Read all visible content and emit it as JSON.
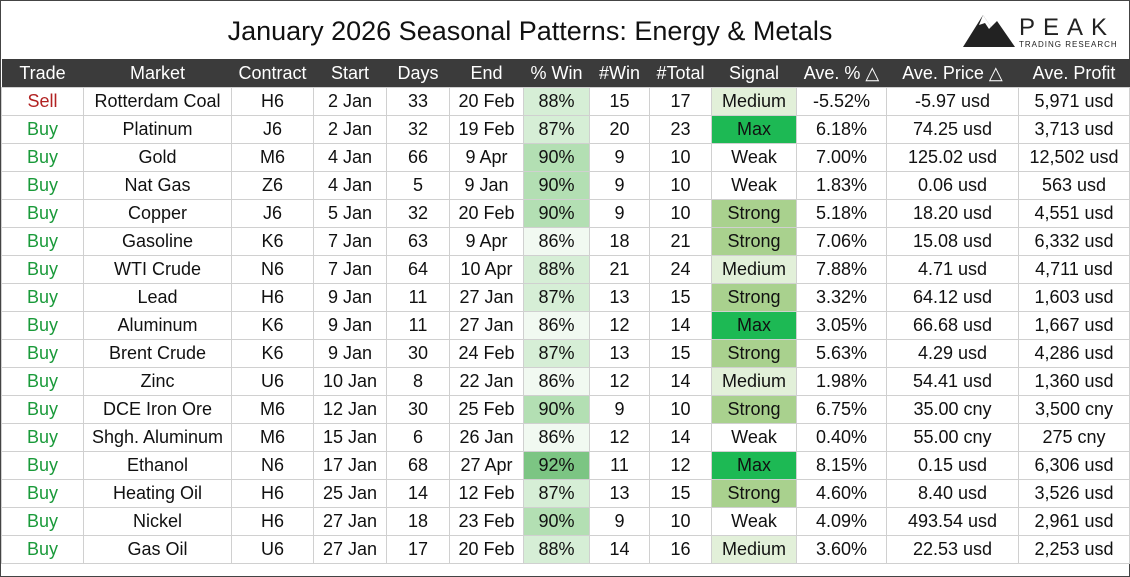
{
  "header": {
    "title": "January 2026 Seasonal Patterns: Energy & Metals",
    "logo_name": "PEAK",
    "logo_tagline": "TRADING RESEARCH"
  },
  "table": {
    "headers": [
      "Trade",
      "Market",
      "Contract",
      "Start",
      "Days",
      "End",
      "% Win",
      "#Win",
      "#Total",
      "Signal",
      "Ave. % △",
      "Ave. Price △",
      "Ave. Profit"
    ],
    "rows": [
      [
        "Sell",
        "Rotterdam Coal",
        "H6",
        "2 Jan",
        "33",
        "20 Feb",
        "88%",
        "15",
        "17",
        "Medium",
        "-5.52%",
        "-5.97 usd",
        "5,971 usd"
      ],
      [
        "Buy",
        "Platinum",
        "J6",
        "2 Jan",
        "32",
        "19 Feb",
        "87%",
        "20",
        "23",
        "Max",
        "6.18%",
        "74.25 usd",
        "3,713 usd"
      ],
      [
        "Buy",
        "Gold",
        "M6",
        "4 Jan",
        "66",
        "9 Apr",
        "90%",
        "9",
        "10",
        "Weak",
        "7.00%",
        "125.02 usd",
        "12,502 usd"
      ],
      [
        "Buy",
        "Nat Gas",
        "Z6",
        "4 Jan",
        "5",
        "9 Jan",
        "90%",
        "9",
        "10",
        "Weak",
        "1.83%",
        "0.06 usd",
        "563 usd"
      ],
      [
        "Buy",
        "Copper",
        "J6",
        "5 Jan",
        "32",
        "20 Feb",
        "90%",
        "9",
        "10",
        "Strong",
        "5.18%",
        "18.20 usd",
        "4,551 usd"
      ],
      [
        "Buy",
        "Gasoline",
        "K6",
        "7 Jan",
        "63",
        "9 Apr",
        "86%",
        "18",
        "21",
        "Strong",
        "7.06%",
        "15.08 usd",
        "6,332 usd"
      ],
      [
        "Buy",
        "WTI Crude",
        "N6",
        "7 Jan",
        "64",
        "10 Apr",
        "88%",
        "21",
        "24",
        "Medium",
        "7.88%",
        "4.71 usd",
        "4,711 usd"
      ],
      [
        "Buy",
        "Lead",
        "H6",
        "9 Jan",
        "11",
        "27 Jan",
        "87%",
        "13",
        "15",
        "Strong",
        "3.32%",
        "64.12 usd",
        "1,603 usd"
      ],
      [
        "Buy",
        "Aluminum",
        "K6",
        "9 Jan",
        "11",
        "27 Jan",
        "86%",
        "12",
        "14",
        "Max",
        "3.05%",
        "66.68 usd",
        "1,667 usd"
      ],
      [
        "Buy",
        "Brent Crude",
        "K6",
        "9 Jan",
        "30",
        "24 Feb",
        "87%",
        "13",
        "15",
        "Strong",
        "5.63%",
        "4.29 usd",
        "4,286 usd"
      ],
      [
        "Buy",
        "Zinc",
        "U6",
        "10 Jan",
        "8",
        "22 Jan",
        "86%",
        "12",
        "14",
        "Medium",
        "1.98%",
        "54.41 usd",
        "1,360 usd"
      ],
      [
        "Buy",
        "DCE Iron Ore",
        "M6",
        "12 Jan",
        "30",
        "25 Feb",
        "90%",
        "9",
        "10",
        "Strong",
        "6.75%",
        "35.00 cny",
        "3,500 cny"
      ],
      [
        "Buy",
        "Shgh. Aluminum",
        "M6",
        "15 Jan",
        "6",
        "26 Jan",
        "86%",
        "12",
        "14",
        "Weak",
        "0.40%",
        "55.00 cny",
        "275 cny"
      ],
      [
        "Buy",
        "Ethanol",
        "N6",
        "17 Jan",
        "68",
        "27 Apr",
        "92%",
        "11",
        "12",
        "Max",
        "8.15%",
        "0.15 usd",
        "6,306 usd"
      ],
      [
        "Buy",
        "Heating Oil",
        "H6",
        "25 Jan",
        "14",
        "12 Feb",
        "87%",
        "13",
        "15",
        "Strong",
        "4.60%",
        "8.40 usd",
        "3,526 usd"
      ],
      [
        "Buy",
        "Nickel",
        "H6",
        "27 Jan",
        "18",
        "23 Feb",
        "90%",
        "9",
        "10",
        "Weak",
        "4.09%",
        "493.54 usd",
        "2,961 usd"
      ],
      [
        "Buy",
        "Gas Oil",
        "U6",
        "27 Jan",
        "17",
        "20 Feb",
        "88%",
        "14",
        "16",
        "Medium",
        "3.60%",
        "22.53 usd",
        "2,253 usd"
      ]
    ]
  }
}
